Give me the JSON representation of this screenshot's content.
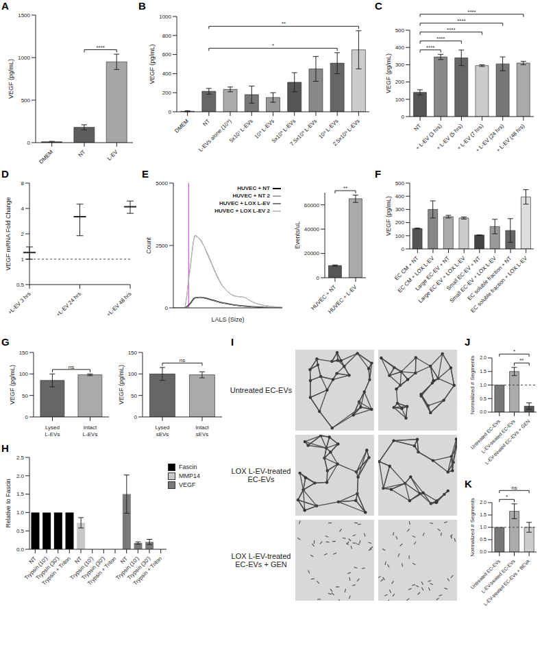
{
  "chart_data": [
    {
      "panel": "A",
      "type": "bar",
      "categories": [
        "DMEM",
        "NT",
        "L-EV"
      ],
      "values": [
        10,
        180,
        950
      ],
      "errors": [
        5,
        30,
        90
      ],
      "colors": [
        "#404040",
        "#5e5e5e",
        "#a6a6a6"
      ],
      "ylabel": "VEGF (pg/mL)",
      "ylim": [
        0,
        1500
      ],
      "yticks": [
        0,
        500,
        1000,
        1500
      ],
      "significance": [
        {
          "pair": [
            "NT",
            "L-EV"
          ],
          "label": "****"
        }
      ]
    },
    {
      "panel": "B",
      "type": "bar",
      "categories": [
        "DMEM",
        "NT",
        "L-EVs alone (10⁹)",
        "5x10⁷ L-EVs",
        "10⁸ L-EVs",
        "5x10⁸ L-EVs",
        "7.5x10⁸ L-EVs",
        "10⁹ L-EVs",
        "2.5x10⁹ L-EVs"
      ],
      "values": [
        5,
        215,
        235,
        180,
        150,
        310,
        450,
        510,
        650
      ],
      "errors": [
        5,
        30,
        25,
        90,
        50,
        100,
        130,
        110,
        200
      ],
      "colors": [
        "#666666",
        "#666666",
        "#aaaaaa",
        "#777777",
        "#999999",
        "#555555",
        "#888888",
        "#666666",
        "#cccccc"
      ],
      "ylabel": "VEGF (pg/mL)",
      "ylim": [
        0,
        1000
      ],
      "yticks": [
        0,
        200,
        400,
        600,
        800,
        1000
      ],
      "significance": [
        {
          "pair": [
            "NT",
            "10⁹ L-EVs"
          ],
          "label": "*"
        },
        {
          "pair": [
            "NT",
            "2.5x10⁹ L-EVs"
          ],
          "label": "**"
        }
      ]
    },
    {
      "panel": "C",
      "type": "bar",
      "categories": [
        "NT",
        "+ L-EV (3 hrs)",
        "+ L-EV (5 hrs)",
        "+ L-EV (7 hrs)",
        "+ L-EV (24 hrs)",
        "+ L-EV (48 hrs)"
      ],
      "values": [
        140,
        345,
        340,
        295,
        305,
        310
      ],
      "errors": [
        15,
        15,
        45,
        5,
        40,
        10
      ],
      "colors": [
        "#555555",
        "#888888",
        "#666666",
        "#cccccc",
        "#777777",
        "#aaaaaa"
      ],
      "ylabel": "VEGF (pg/mL)",
      "ylim": [
        0,
        500
      ],
      "yticks": [
        0,
        100,
        200,
        300,
        400,
        500
      ],
      "significance": [
        {
          "pair": [
            "NT",
            "+ L-EV (3 hrs)"
          ],
          "label": "****"
        },
        {
          "pair": [
            "NT",
            "+ L-EV (5 hrs)"
          ],
          "label": "****"
        },
        {
          "pair": [
            "NT",
            "+ L-EV (7 hrs)"
          ],
          "label": "****"
        },
        {
          "pair": [
            "NT",
            "+ L-EV (24 hrs)"
          ],
          "label": "****"
        },
        {
          "pair": [
            "NT",
            "+ L-EV (48 hrs)"
          ],
          "label": "****"
        }
      ]
    },
    {
      "panel": "D",
      "type": "scatter",
      "categories": [
        "+L-EV 3 hrs",
        "+L-EV 24 hrs",
        "+L-EV 48 hrs"
      ],
      "values": [
        1.2,
        3.2,
        4.2
      ],
      "errors": [
        0.2,
        1.3,
        0.7
      ],
      "color": "#222222",
      "marker": "dash",
      "ylabel": "VEGF mRNA Fold Change",
      "log": "y",
      "ylim": [
        0.5,
        8
      ],
      "yticks": [
        0.5,
        1,
        2,
        4,
        8
      ],
      "reference_line": 1
    },
    {
      "panel": "E",
      "type": "line",
      "x": [
        0,
        5,
        10,
        15,
        20,
        25,
        30,
        35,
        40,
        45,
        50,
        55,
        60,
        65,
        70,
        75,
        80,
        85,
        90,
        95,
        100
      ],
      "xlabel": "LALS (Size)",
      "ylabel": "Count",
      "xlim": [
        0,
        100
      ],
      "ylim": [
        0,
        5000
      ],
      "yticks": [
        0,
        2500,
        5000
      ],
      "tick_labels": "y",
      "gate_x": 14,
      "legend": "upper right",
      "series": [
        {
          "name": "HUVEC + NT",
          "color": "#000000",
          "values": [
            0,
            0,
            0,
            150,
            400,
            420,
            380,
            320,
            260,
            200,
            160,
            120,
            90,
            70,
            50,
            35,
            25,
            15,
            10,
            5,
            0
          ]
        },
        {
          "name": "HUVEC + NT 2",
          "color": "#a6a6a6",
          "values": [
            0,
            0,
            0,
            140,
            390,
            430,
            370,
            310,
            250,
            195,
            150,
            115,
            85,
            65,
            48,
            33,
            22,
            14,
            9,
            4,
            0
          ]
        },
        {
          "name": "HUVEC + LOX L-EV",
          "color": "#808080",
          "values": [
            0,
            0,
            0,
            1500,
            2900,
            2700,
            2300,
            1800,
            1300,
            900,
            650,
            500,
            450,
            430,
            300,
            200,
            130,
            90,
            60,
            40,
            20
          ]
        },
        {
          "name": "HUVEC + LOX L-EV 2",
          "color": "#c0c0c0",
          "values": [
            0,
            0,
            0,
            1400,
            2850,
            2750,
            2250,
            1750,
            1250,
            880,
            640,
            480,
            440,
            420,
            290,
            190,
            120,
            85,
            55,
            35,
            20
          ]
        }
      ]
    },
    {
      "type": "bar",
      "categories": [
        "HUVEC + NT",
        "HUVEC + L-EV"
      ],
      "values": [
        10000,
        65000
      ],
      "errors": [
        500,
        3000
      ],
      "colors": [
        "#555555",
        "#aaaaaa"
      ],
      "ylabel": "Events/uL",
      "ylim": [
        0,
        70000
      ],
      "yticks": [
        0,
        20000,
        40000,
        60000
      ],
      "significance": [
        {
          "pair": [
            "HUVEC + NT",
            "HUVEC + L-EV"
          ],
          "label": "**"
        }
      ]
    },
    {
      "panel": "F",
      "type": "bar",
      "categories": [
        "EC CM + NT",
        "EC CM + LOX L-EV",
        "Large EC-EV + NT",
        "Large EC-EV + LOX L-EV",
        "Small EC-EV + NT",
        "Small EC-EV + LOX L-EV",
        "EC soluble fraction + NT",
        "EC soluble fraction + LOX L-EV"
      ],
      "values": [
        155,
        300,
        245,
        235,
        105,
        170,
        140,
        395
      ],
      "errors": [
        3,
        65,
        10,
        8,
        2,
        55,
        90,
        55
      ],
      "colors": [
        "#555555",
        "#888888",
        "#aaaaaa",
        "#cccccc",
        "#444444",
        "#999999",
        "#666666",
        "#dddddd"
      ],
      "ylabel": "VEGF (pg/mL)",
      "ylim": [
        0,
        500
      ],
      "yticks": [
        0,
        100,
        200,
        300,
        400,
        500
      ]
    },
    {
      "panel": "G",
      "type": "bar",
      "categories": [
        "Lysed L-EVs",
        "Intact L-EVs"
      ],
      "values": [
        85,
        98
      ],
      "errors": [
        15,
        2
      ],
      "colors": [
        "#666666",
        "#aaaaaa"
      ],
      "ylabel": "VEGF (pg/mL)",
      "ylim": [
        0,
        150
      ],
      "yticks": [
        0,
        50,
        100,
        150
      ],
      "significance": [
        {
          "pair": [
            "Lysed L-EVs",
            "Intact L-EVs"
          ],
          "label": "ns"
        }
      ]
    },
    {
      "type": "bar",
      "categories": [
        "Lysed sEVs",
        "Intact sEVs"
      ],
      "values": [
        100,
        98
      ],
      "errors": [
        15,
        7
      ],
      "colors": [
        "#666666",
        "#aaaaaa"
      ],
      "ylabel": "VEGF (pg/mL)",
      "ylim": [
        0,
        150
      ],
      "yticks": [
        0,
        50,
        100,
        150
      ],
      "significance": [
        {
          "pair": [
            "Lysed sEVs",
            "Intact sEVs"
          ],
          "label": "ns"
        }
      ]
    },
    {
      "panel": "H",
      "type": "bar",
      "categories": [
        "NT",
        "Trypsin (10')",
        "Trypsin (30')",
        "Trypsin + Triton",
        "NT",
        "Trypsin (10')",
        "Trypsin (30')",
        "Trypsin + Triton",
        "NT",
        "Trypsin (10')",
        "Trypsin (30')",
        "Trypsin + Triton"
      ],
      "ylabel": "Relative to Fascin",
      "ylim": [
        0,
        2.5
      ],
      "yticks": [
        {
          "value": 0,
          "label": "0.0"
        },
        0.5,
        {
          "value": 1,
          "label": "1.0"
        },
        1.5,
        {
          "value": 2,
          "label": "2.0"
        },
        2.5
      ],
      "legend": "right",
      "series": [
        {
          "name": "Fascin",
          "color": "#000000",
          "values": [
            1,
            1,
            1,
            1,
            null,
            null,
            null,
            null,
            null,
            null,
            null,
            null
          ],
          "errors": [
            null,
            null,
            null,
            null,
            null,
            null,
            null,
            null,
            null,
            null,
            null,
            null
          ]
        },
        {
          "name": "MMP14",
          "color": "#c8c8c8",
          "values": [
            null,
            null,
            null,
            null,
            0.72,
            0,
            0,
            0,
            null,
            null,
            null,
            null
          ],
          "errors": [
            null,
            null,
            null,
            null,
            0.14,
            null,
            null,
            null,
            null,
            null,
            null,
            null
          ]
        },
        {
          "name": "VEGF",
          "color": "#7a7a7a",
          "values": [
            null,
            null,
            null,
            null,
            null,
            null,
            null,
            null,
            1.5,
            0.17,
            0.2,
            0
          ],
          "errors": [
            null,
            null,
            null,
            null,
            null,
            null,
            null,
            null,
            0.52,
            0.03,
            0.07,
            null
          ]
        }
      ]
    },
    {
      "panel": "J",
      "type": "bar",
      "categories": [
        "Untreated EC-EVs",
        "L-EV-treated EC-EVs",
        "L-EV-treated EC-EVs + GEN"
      ],
      "values": [
        1.0,
        1.5,
        0.22
      ],
      "errors": [
        0,
        0.15,
        0.12
      ],
      "colors": [
        "#777777",
        "#aaaaaa",
        "#555555"
      ],
      "ylabel": "Normalized # Segments",
      "ylim": [
        0,
        2
      ],
      "yticks": [
        {
          "value": 0,
          "label": "0.0"
        },
        0.5,
        {
          "value": 1,
          "label": "1.0"
        },
        1.5,
        {
          "value": 2,
          "label": "2.0"
        }
      ],
      "reference_line": 1,
      "significance": [
        {
          "pair": [
            "L-EV-treated EC-EVs",
            "L-EV-treated EC-EVs + GEN"
          ],
          "label": "**"
        },
        {
          "pair": [
            "Untreated EC-EVs",
            "L-EV-treated EC-EVs + GEN"
          ],
          "label": "*"
        }
      ]
    },
    {
      "panel": "K",
      "type": "bar",
      "categories": [
        "Untreated EC-EVs",
        "L-EV-treated EC-EVs",
        "L-EV-treated EC-EVs + BEVA"
      ],
      "values": [
        1.0,
        1.65,
        1.0
      ],
      "errors": [
        0,
        0.3,
        0.2
      ],
      "colors": [
        "#777777",
        "#aaaaaa",
        "#cccccc"
      ],
      "ylabel": "Normalized # Segments",
      "ylim": [
        0,
        2
      ],
      "yticks": [
        {
          "value": 0,
          "label": "0.0"
        },
        0.5,
        {
          "value": 1,
          "label": "1.0"
        },
        1.5,
        {
          "value": 2,
          "label": "2.0"
        }
      ],
      "reference_line": 1,
      "significance": [
        {
          "pair": [
            "Untreated EC-EVs",
            "L-EV-treated EC-EVs"
          ],
          "label": "*"
        },
        {
          "pair": [
            "Untreated EC-EVs",
            "L-EV-treated EC-EVs + BEVA"
          ],
          "label": "ns"
        }
      ]
    }
  ],
  "images": {
    "panel": "I",
    "rows": [
      "Untreated EC-EVs",
      "LOX L-EV-treated EC-EVs",
      "LOX L-EV-treated EC-EVs + GEN"
    ]
  }
}
